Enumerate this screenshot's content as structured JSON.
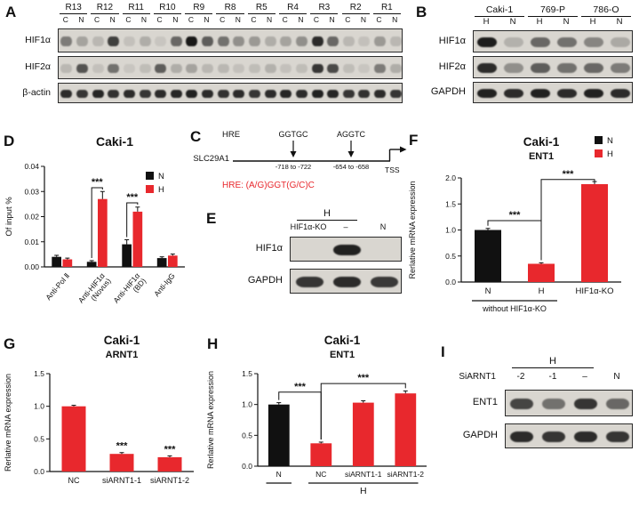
{
  "panels": {
    "a": {
      "label": "A",
      "groups": [
        "R13",
        "R12",
        "R11",
        "R10",
        "R9",
        "R8",
        "R5",
        "R4",
        "R3",
        "R2",
        "R1"
      ],
      "sub_lanes": [
        "C",
        "N"
      ],
      "rows": [
        {
          "name": "HIF1α",
          "bands": [
            0.45,
            0.25,
            0.15,
            0.75,
            0.1,
            0.2,
            0.08,
            0.55,
            0.95,
            0.6,
            0.5,
            0.35,
            0.3,
            0.2,
            0.25,
            0.35,
            0.85,
            0.55,
            0.15,
            0.1,
            0.3,
            0.15
          ]
        },
        {
          "name": "HIF2α",
          "bands": [
            0.15,
            0.65,
            0.1,
            0.5,
            0.08,
            0.12,
            0.6,
            0.2,
            0.25,
            0.15,
            0.15,
            0.1,
            0.12,
            0.18,
            0.1,
            0.12,
            0.8,
            0.7,
            0.12,
            0.08,
            0.45,
            0.2
          ]
        },
        {
          "name": "β-actin",
          "bands": [
            0.85,
            0.8,
            0.88,
            0.82,
            0.85,
            0.8,
            0.85,
            0.88,
            0.9,
            0.85,
            0.82,
            0.85,
            0.8,
            0.85,
            0.88,
            0.85,
            0.9,
            0.88,
            0.8,
            0.82,
            0.85,
            0.8
          ]
        }
      ]
    },
    "b": {
      "label": "B",
      "groups": [
        "Caki-1",
        "769-P",
        "786-O"
      ],
      "sub_lanes": [
        "H",
        "N"
      ],
      "rows": [
        {
          "name": "HIF1α",
          "bands": [
            0.92,
            0.18,
            0.55,
            0.5,
            0.4,
            0.22
          ]
        },
        {
          "name": "HIF2α",
          "bands": [
            0.85,
            0.35,
            0.6,
            0.5,
            0.55,
            0.45
          ]
        },
        {
          "name": "GAPDH",
          "bands": [
            0.9,
            0.85,
            0.9,
            0.85,
            0.9,
            0.85
          ]
        }
      ]
    },
    "c": {
      "label": "C",
      "hre": "HRE",
      "gene": "SLC29A1",
      "site1_seq": "GGTGC",
      "site1_pos": "-718 to -722",
      "site2_seq": "AGGTC",
      "site2_pos": "-654 to -658",
      "tss": "TSS",
      "consensus_prefix": "HRE:",
      "consensus_seq": " (A/G)GGT(G/C)C"
    },
    "d": {
      "label": "D"
    },
    "e": {
      "label": "E",
      "condition": "H",
      "header_span": [
        0,
        1
      ],
      "lanes": [
        "HIF1α-KO",
        "–",
        "N"
      ],
      "rows": [
        {
          "name": "HIF1α",
          "bands": [
            0.0,
            0.9,
            0.0
          ]
        },
        {
          "name": "GAPDH",
          "bands": [
            0.8,
            0.85,
            0.78
          ]
        }
      ]
    },
    "f": {
      "label": "F"
    },
    "g": {
      "label": "G"
    },
    "h": {
      "label": "H"
    },
    "i": {
      "label": "I",
      "condition": "H",
      "header_span": [
        0,
        2
      ],
      "si_label": "SiARNT1",
      "lanes": [
        "-2",
        "-1",
        "–",
        "N"
      ],
      "rows": [
        {
          "name": "ENT1",
          "bands": [
            0.72,
            0.5,
            0.8,
            0.55
          ]
        },
        {
          "name": "GAPDH",
          "bands": [
            0.85,
            0.8,
            0.85,
            0.8
          ]
        }
      ]
    }
  },
  "chart_data": [
    {
      "id": "d",
      "type": "bar",
      "title": "Caki-1",
      "ylabel": "Of input %",
      "ylim": [
        0,
        0.04
      ],
      "yticks": [
        "0.00",
        "0.01",
        "0.02",
        "0.03",
        "0.04"
      ],
      "categories": [
        "Anti-Pol Ⅱ",
        "Anti-HIF1α|(Novus)",
        "Anti-HIF1α|(BD)",
        "Anti-IgG"
      ],
      "legend": [
        {
          "label": "N",
          "color": "#111111"
        },
        {
          "label": "H",
          "color": "#e8282d"
        }
      ],
      "series": [
        {
          "name": "N",
          "color": "#111111",
          "values": [
            0.004,
            0.002,
            0.009,
            0.0035
          ],
          "errors": [
            0.0006,
            0.0005,
            0.0018,
            0.0005
          ]
        },
        {
          "name": "H",
          "color": "#e8282d",
          "values": [
            0.003,
            0.027,
            0.022,
            0.0045
          ],
          "errors": [
            0.0005,
            0.003,
            0.0018,
            0.0006
          ]
        }
      ],
      "significance": [
        {
          "from": [
            1,
            0
          ],
          "to": [
            1,
            1
          ],
          "y": 0.0315,
          "label": "***"
        },
        {
          "from": [
            2,
            0
          ],
          "to": [
            2,
            1
          ],
          "y": 0.0255,
          "label": "***"
        }
      ]
    },
    {
      "id": "f",
      "type": "bar",
      "title": "Caki-1",
      "subtitle": "ENT1",
      "ylabel": "Rerlative mRNA expression",
      "ylim": [
        0,
        2
      ],
      "yticks": [
        "0.0",
        "0.5",
        "1.0",
        "1.5",
        "2.0"
      ],
      "categories": [
        "N",
        "H",
        "HIF1α-KO"
      ],
      "legend": [
        {
          "label": "N",
          "color": "#111111"
        },
        {
          "label": "H",
          "color": "#e8282d"
        }
      ],
      "values": [
        1.0,
        0.35,
        1.88
      ],
      "errors": [
        0.03,
        0.02,
        0.05
      ],
      "bar_colors": [
        "#111111",
        "#e8282d",
        "#e8282d"
      ],
      "significance": [
        {
          "from": 0,
          "to": 1,
          "y": 1.18,
          "label": "***"
        },
        {
          "from": 1,
          "to": 2,
          "y": 1.97,
          "label": "***"
        }
      ],
      "group_lines": [
        {
          "from": 0,
          "to": 1,
          "label": "without HIF1α-KO"
        }
      ]
    },
    {
      "id": "g",
      "type": "bar",
      "title": "Caki-1",
      "subtitle": "ARNT1",
      "ylabel": "Rerlative mRNA expression",
      "ylim": [
        0,
        1.5
      ],
      "yticks": [
        "0.0",
        "0.5",
        "1.0",
        "1.5"
      ],
      "categories": [
        "NC",
        "siARNT1-1",
        "siARNT1-2"
      ],
      "values": [
        1.0,
        0.27,
        0.22
      ],
      "errors": [
        0.015,
        0.02,
        0.02
      ],
      "bar_colors": [
        "#e8282d",
        "#e8282d",
        "#e8282d"
      ],
      "stars": [
        {
          "bar": 1,
          "label": "***"
        },
        {
          "bar": 2,
          "label": "***"
        }
      ]
    },
    {
      "id": "h",
      "type": "bar",
      "title": "Caki-1",
      "subtitle": "ENT1",
      "ylabel": "Rerlative mRNA expression",
      "ylim": [
        0,
        1.5
      ],
      "yticks": [
        "0.0",
        "0.5",
        "1.0",
        "1.5"
      ],
      "categories": [
        "N",
        "NC",
        "siARNT1-1",
        "siARNT1-2"
      ],
      "values": [
        1.0,
        0.37,
        1.03,
        1.18
      ],
      "errors": [
        0.03,
        0.02,
        0.03,
        0.04
      ],
      "bar_colors": [
        "#111111",
        "#e8282d",
        "#e8282d",
        "#e8282d"
      ],
      "significance": [
        {
          "from": 0,
          "to": 1,
          "y": 1.2,
          "label": "***"
        },
        {
          "from": 1,
          "to": 3,
          "y": 1.34,
          "label": "***"
        }
      ],
      "group_lines": [
        {
          "from": 0,
          "to": 0,
          "label": ""
        },
        {
          "from": 1,
          "to": 3,
          "label": "H"
        }
      ]
    }
  ]
}
